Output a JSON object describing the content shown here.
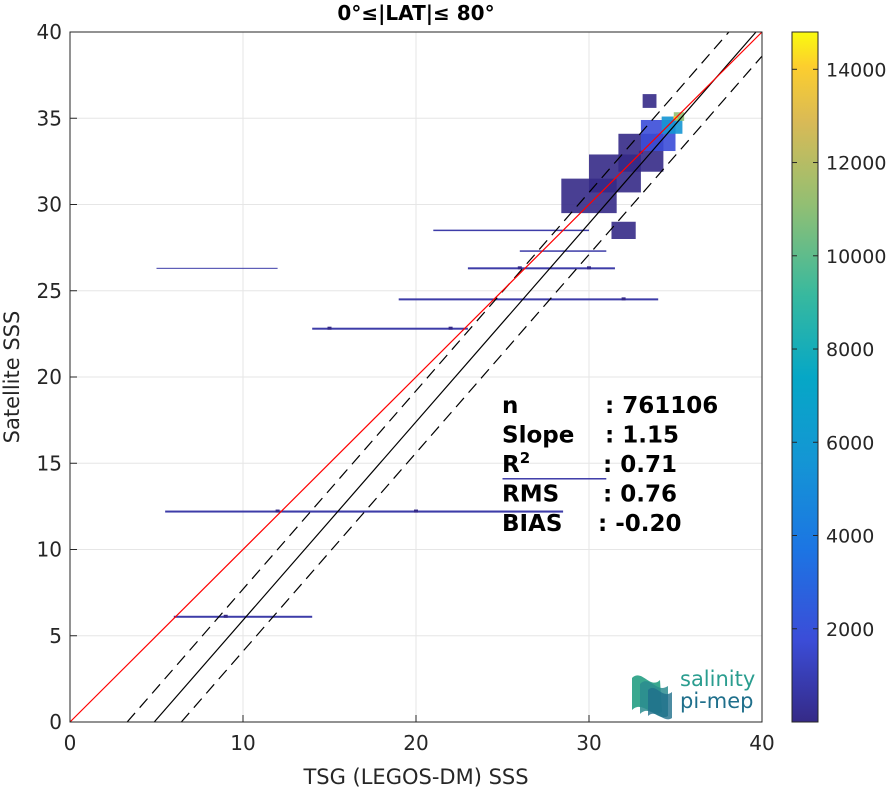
{
  "chart_data": {
    "type": "heatmap",
    "title": "0°≤|LAT|≤ 80°",
    "xlabel": "TSG (LEGOS-DM) SSS",
    "ylabel": "Satellite SSS",
    "xlim": [
      0,
      40
    ],
    "ylim": [
      0,
      40
    ],
    "xticks": [
      "0",
      "10",
      "20",
      "30",
      "40"
    ],
    "yticks": [
      "0",
      "5",
      "10",
      "15",
      "20",
      "25",
      "30",
      "35",
      "40"
    ],
    "grid": true,
    "colorbar": {
      "range": [
        0,
        14800
      ],
      "ticks": [
        "2000",
        "4000",
        "6000",
        "8000",
        "10000",
        "12000",
        "14000"
      ],
      "colormap": "parula"
    },
    "stats": [
      {
        "label": "n",
        "value": ": 761106"
      },
      {
        "label": "Slope",
        "value": ": 1.15"
      },
      {
        "label": "R",
        "sup": "2",
        "value": ": 0.71"
      },
      {
        "label": "RMS",
        "value": ": 0.76"
      },
      {
        "label": "BIAS",
        "value": ": -0.20"
      }
    ],
    "reference_lines": {
      "one_to_one": {
        "slope": 1,
        "intercept": 0,
        "color": "#ff0000"
      },
      "fit": {
        "slope": 1.15,
        "intercept": -5.6,
        "color": "#000000"
      },
      "fit_bounds_offset": 1.8
    },
    "density_points": [
      {
        "x": 26,
        "y": 26.3,
        "c": 150
      },
      {
        "x": 30,
        "y": 26.3,
        "c": 150
      },
      {
        "x": 15,
        "y": 22.8,
        "c": 150
      },
      {
        "x": 22,
        "y": 22.8,
        "c": 150
      },
      {
        "x": 32,
        "y": 24.5,
        "c": 180
      },
      {
        "x": 12,
        "y": 12.2,
        "c": 220
      },
      {
        "x": 20,
        "y": 12.2,
        "c": 200
      },
      {
        "x": 9,
        "y": 6.1,
        "c": 160
      },
      {
        "x": 33,
        "y": 33,
        "c": 900
      },
      {
        "x": 34,
        "y": 34,
        "c": 2500
      },
      {
        "x": 35,
        "y": 35,
        "c": 12000
      }
    ],
    "logo_text": [
      "salinity",
      "pi-mep"
    ]
  }
}
